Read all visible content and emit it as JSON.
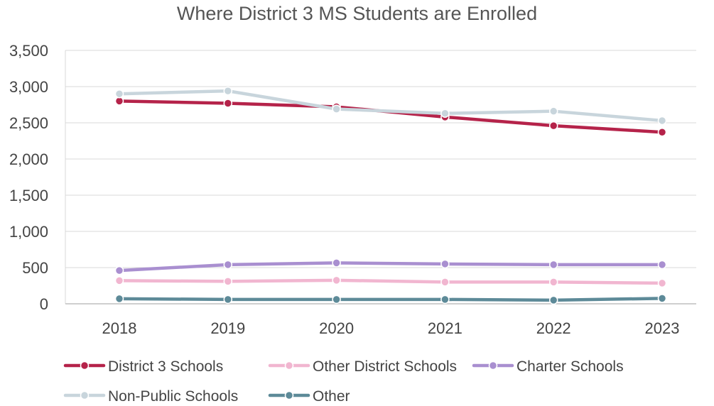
{
  "chart_data": {
    "type": "line",
    "title": "Where District 3 MS Students are Enrolled",
    "xlabel": "",
    "ylabel": "",
    "categories": [
      "2018",
      "2019",
      "2020",
      "2021",
      "2022",
      "2023"
    ],
    "ylim": [
      0,
      3500
    ],
    "yticks": [
      0,
      500,
      1000,
      1500,
      2000,
      2500,
      3000,
      3500
    ],
    "ytick_labels": [
      "0",
      "500",
      "1,000",
      "1,500",
      "2,000",
      "2,500",
      "3,000",
      "3,500"
    ],
    "grid": true,
    "legend_position": "bottom",
    "series": [
      {
        "name": "District 3 Schools",
        "color": "#b5234a",
        "values": [
          2800,
          2770,
          2720,
          2580,
          2460,
          2370
        ]
      },
      {
        "name": "Other District Schools",
        "color": "#f1b6d0",
        "values": [
          320,
          310,
          325,
          300,
          300,
          285
        ]
      },
      {
        "name": "Charter Schools",
        "color": "#a98fd0",
        "values": [
          460,
          540,
          565,
          550,
          540,
          540
        ]
      },
      {
        "name": "Non-Public Schools",
        "color": "#c8d5dc",
        "values": [
          2900,
          2940,
          2690,
          2630,
          2660,
          2530
        ]
      },
      {
        "name": "Other",
        "color": "#5d8a98",
        "values": [
          70,
          60,
          60,
          60,
          50,
          75
        ]
      }
    ],
    "draw_order": [
      4,
      1,
      2,
      0,
      3
    ]
  }
}
